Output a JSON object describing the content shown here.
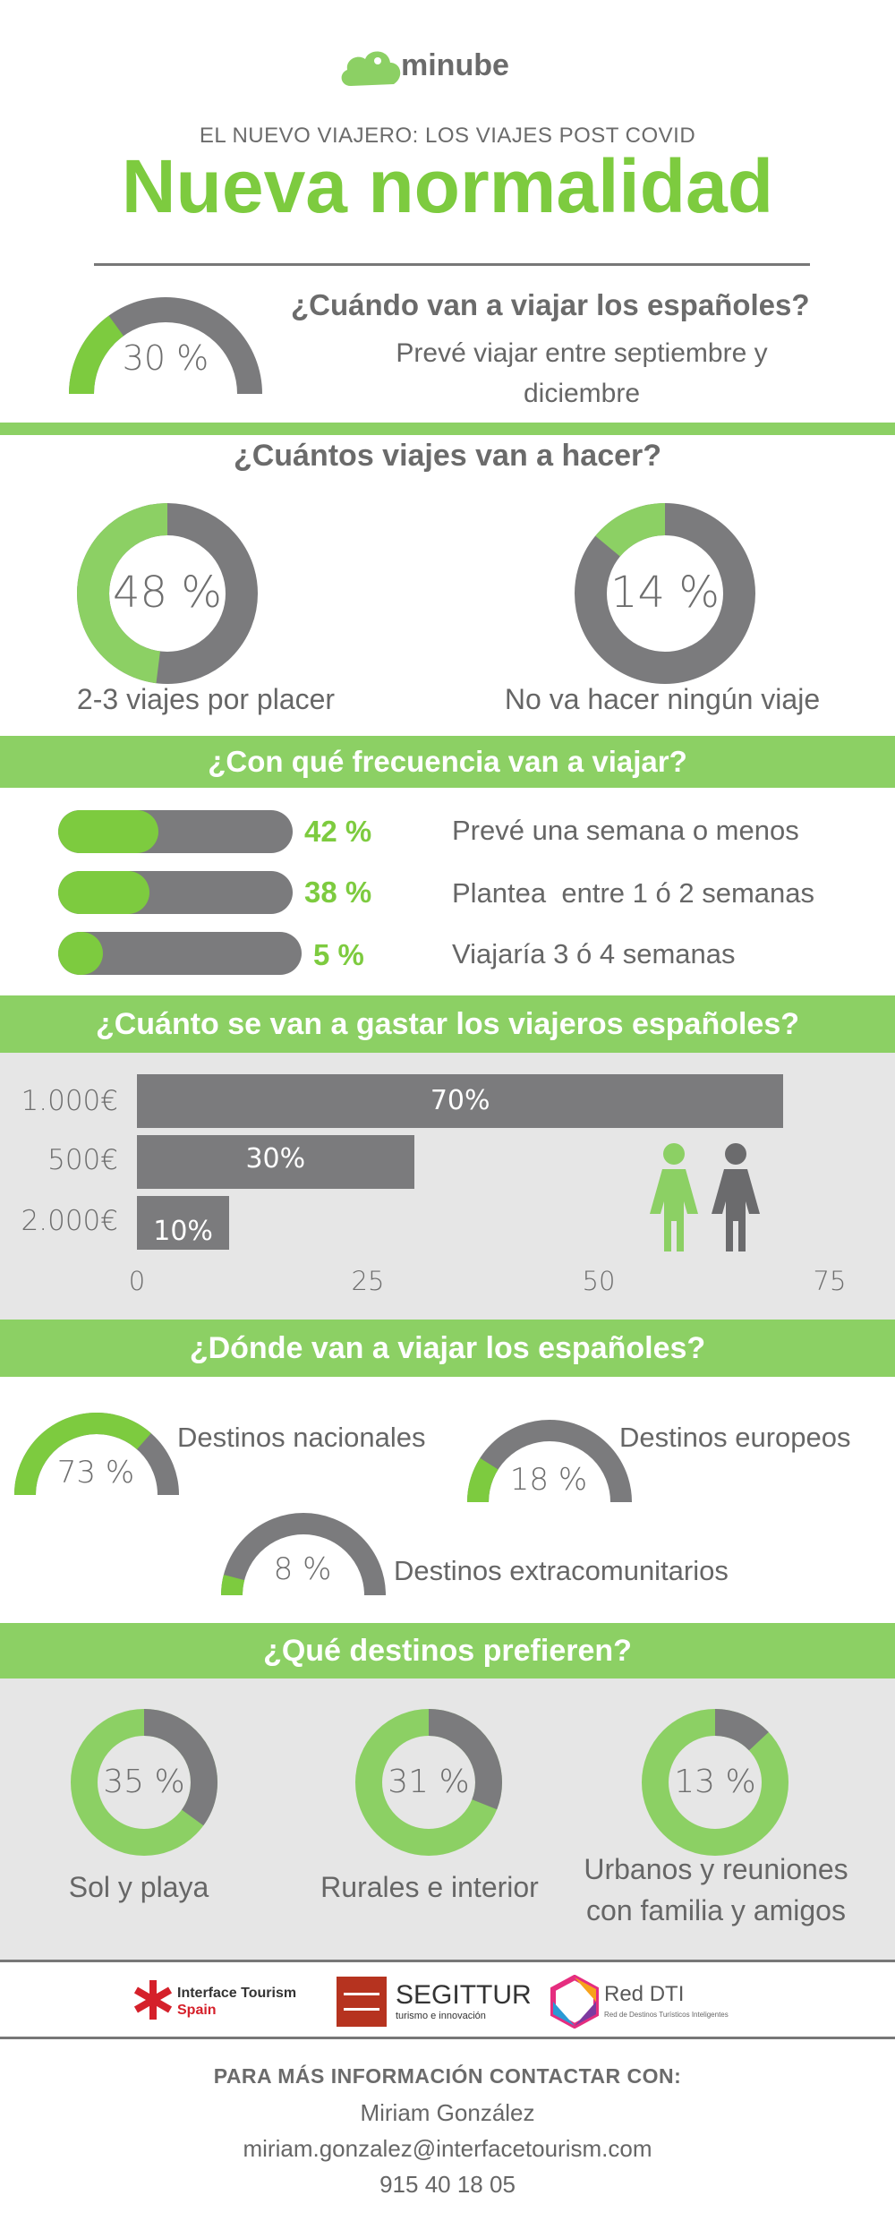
{
  "colors": {
    "green": "#8cd064",
    "dark_green": "#7dcb3f",
    "gray": "#7b7b7d",
    "light_gray": "#e6e6e6"
  },
  "header": {
    "logo_text": "minube",
    "subtitle": "EL NUEVO VIAJERO: LOS VIAJES POST COVID",
    "title": "Nueva normalidad"
  },
  "when": {
    "question": "¿Cuándo van a viajar los españoles?",
    "percent_label": "30 %",
    "value": 30,
    "text_line1": "Prevé viajar entre septiembre y",
    "text_line2": "diciembre"
  },
  "how_many": {
    "heading": "¿Cuántos viajes van a hacer?",
    "items": [
      {
        "percent_label": "48 %",
        "value": 48,
        "caption": "2-3 viajes por placer"
      },
      {
        "percent_label": "14 %",
        "value": 14,
        "caption": "No va hacer ningún viaje"
      }
    ]
  },
  "frequency": {
    "heading": "¿Con qué frecuencia van a viajar?",
    "items": [
      {
        "percent_label": "42 %",
        "value": 42,
        "text": "Prevé una semana o menos"
      },
      {
        "percent_label": "38 %",
        "value": 38,
        "text": "Plantea  entre 1 ó 2 semanas"
      },
      {
        "percent_label": "5 %",
        "value": 5,
        "text": "Viajaría 3 ó 4 semanas"
      }
    ]
  },
  "spending": {
    "heading": "¿Cuánto se van a gastar los viajeros españoles?",
    "female_icon": "woman-icon",
    "male_icon": "man-icon"
  },
  "chart_data": {
    "type": "bar",
    "orientation": "horizontal",
    "categories": [
      "1.000€",
      "500€",
      "2.000€"
    ],
    "values": [
      70,
      30,
      10
    ],
    "value_labels": [
      "70%",
      "30%",
      "10%"
    ],
    "xlim": [
      0,
      75
    ],
    "xticks": [
      "0",
      "25",
      "50",
      "75"
    ]
  },
  "where": {
    "heading": "¿Dónde van a viajar los españoles?",
    "items": [
      {
        "percent_label": "73 %",
        "value": 73,
        "text": "Destinos nacionales"
      },
      {
        "percent_label": "18 %",
        "value": 18,
        "text": "Destinos europeos"
      },
      {
        "percent_label": "8 %",
        "value": 8,
        "text": "Destinos extracomunitarios"
      }
    ]
  },
  "preferred": {
    "heading": "¿Qué destinos prefieren?",
    "items": [
      {
        "percent_label": "35 %",
        "value": 35,
        "line1": "Sol y playa",
        "line2": ""
      },
      {
        "percent_label": "31 %",
        "value": 31,
        "line1": "Rurales e interior",
        "line2": ""
      },
      {
        "percent_label": "13 %",
        "value": 13,
        "line1": "Urbanos y reuniones",
        "line2": "con familia y amigos"
      }
    ]
  },
  "logos": {
    "interface_line1": "Interface Tourism",
    "interface_line2": "Spain",
    "segittur": "SEGITTUR",
    "segittur_sub": "turismo e innovación",
    "reddti": "Red DTI",
    "reddti_sub": "Red de Destinos Turísticos Inteligentes"
  },
  "contact": {
    "heading": "PARA MÁS INFORMACIÓN CONTACTAR CON:",
    "name": "Miriam González",
    "email": "miriam.gonzalez@interfacetourism.com",
    "phone": "915 40 18 05"
  }
}
